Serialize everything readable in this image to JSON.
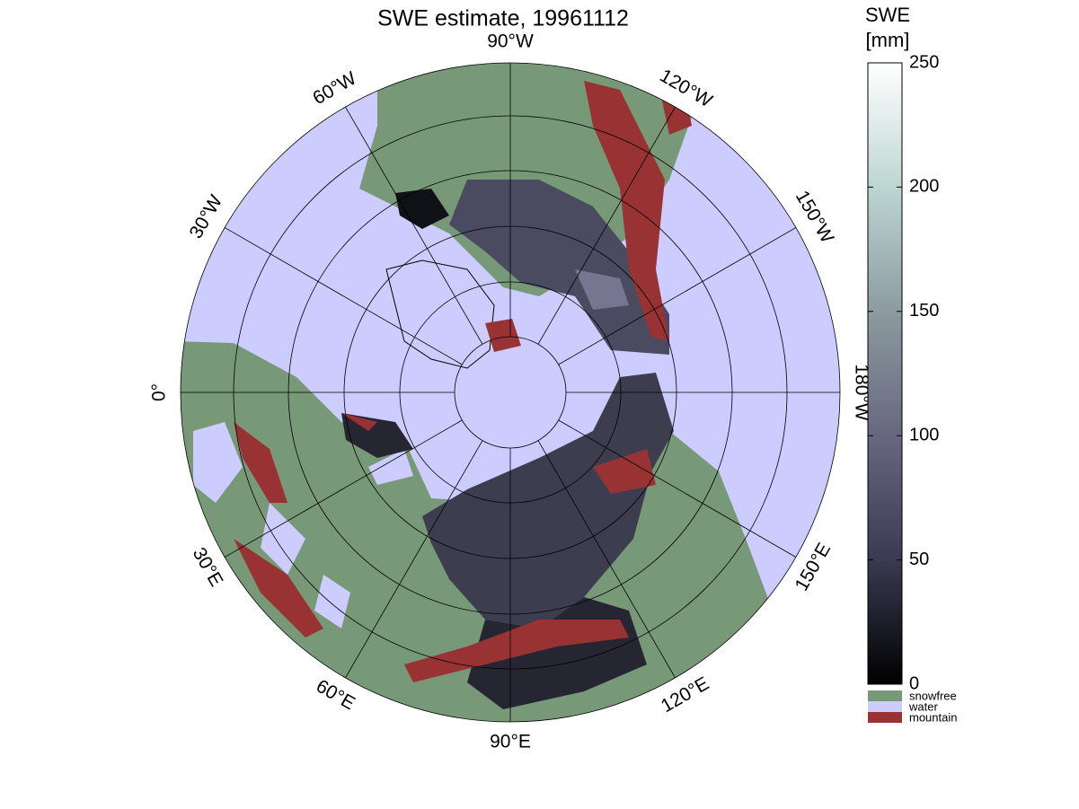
{
  "title": "SWE estimate, 19961112",
  "meridians": [
    {
      "value": -90,
      "label": "90°W"
    },
    {
      "value": -120,
      "label": "120°W"
    },
    {
      "value": -150,
      "label": "150°W"
    },
    {
      "value": -180,
      "label": "180°W"
    },
    {
      "value": 150,
      "label": "150°E"
    },
    {
      "value": 120,
      "label": "120°E"
    },
    {
      "value": 90,
      "label": "90°E"
    },
    {
      "value": 60,
      "label": "60°E"
    },
    {
      "value": 30,
      "label": "30°E"
    },
    {
      "value": 0,
      "label": "0°"
    },
    {
      "value": -30,
      "label": "30°W"
    },
    {
      "value": -60,
      "label": "60°W"
    }
  ],
  "colorbar": {
    "label": [
      "SWE",
      "[mm]"
    ],
    "lim": [
      0,
      250
    ],
    "ticks": [
      0,
      50,
      100,
      150,
      200,
      250
    ],
    "colors": [
      "#000000",
      "#3a3a52",
      "#67677f",
      "#8c9ba0",
      "#bdd6d2",
      "#ffffff"
    ]
  },
  "legend": [
    {
      "label": "snowfree",
      "color": "#779977"
    },
    {
      "label": "water",
      "color": "#ccccff"
    },
    {
      "label": "mountain",
      "color": "#993333"
    }
  ]
}
